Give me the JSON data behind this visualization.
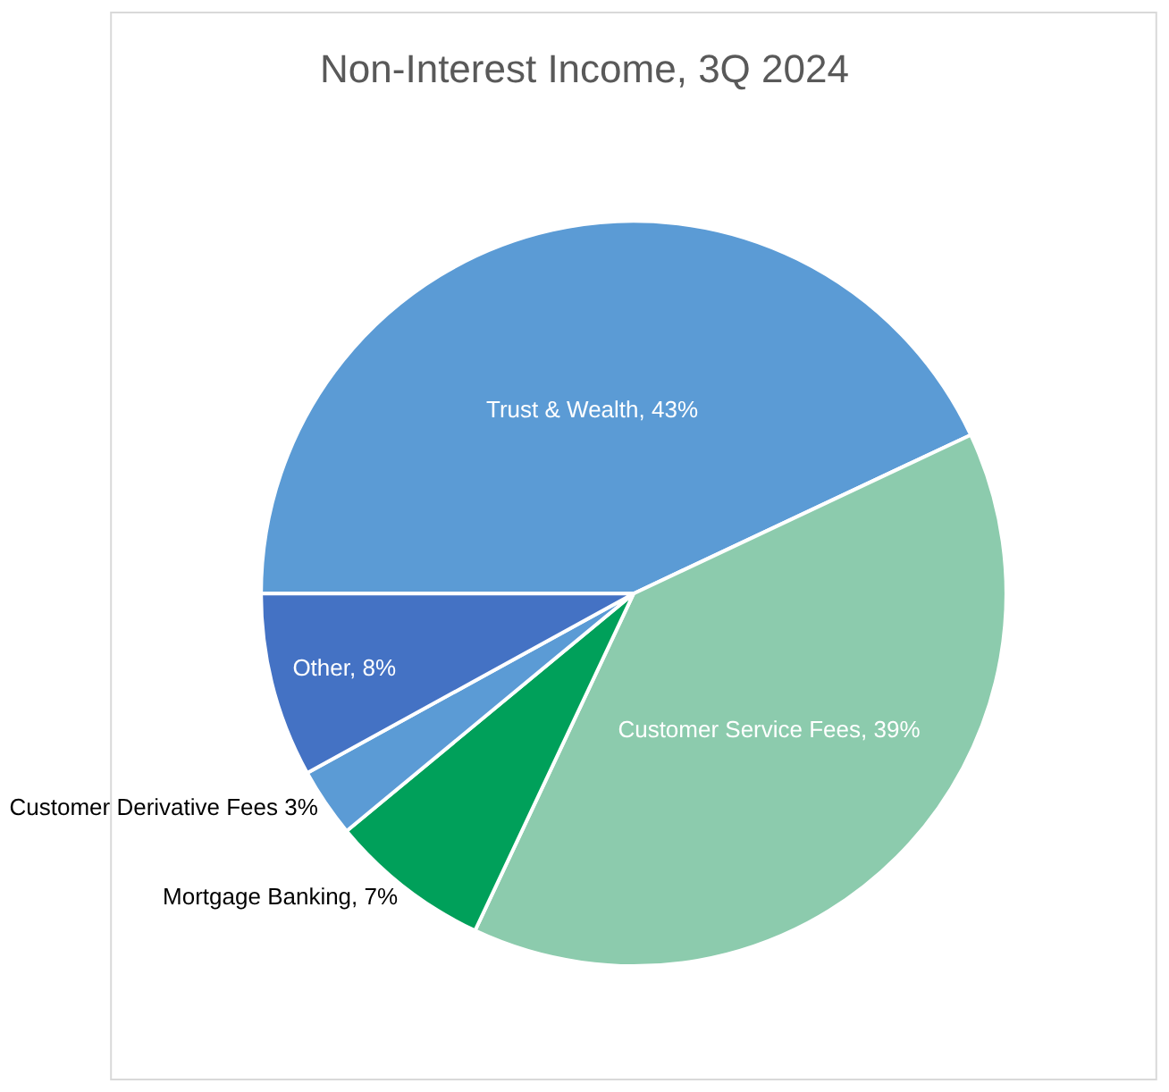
{
  "chart_data": {
    "type": "pie",
    "title": "Non-Interest Income, 3Q 2024",
    "categories": [
      "Trust & Wealth",
      "Customer Service Fees",
      "Mortgage Banking",
      "Customer Derivative Fees",
      "Other"
    ],
    "values": [
      43,
      39,
      7,
      3,
      8
    ],
    "colors": [
      "#5b9bd5",
      "#8ccbad",
      "#00a05a",
      "#5b9bd5",
      "#4472c4"
    ],
    "value_labels": [
      ", 43%",
      ", 39%",
      ", 7%",
      " 3%",
      ", 8%"
    ],
    "legend": false
  }
}
